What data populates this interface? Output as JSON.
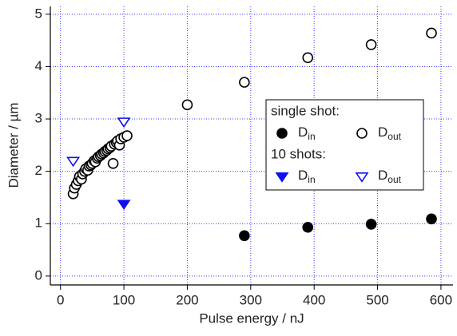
{
  "chart_data": {
    "type": "scatter",
    "x_label": "Pulse energy / nJ",
    "y_label": "Diameter / µm",
    "xlim": [
      -16,
      619
    ],
    "ylim": [
      -0.17,
      5.15
    ],
    "xticks": [
      0,
      100,
      200,
      300,
      400,
      500,
      600
    ],
    "yticks": [
      0,
      1,
      2,
      3,
      4,
      5
    ],
    "grid": true,
    "grid_color": "#3a3aff",
    "legend_position": "right",
    "legend_groups": [
      {
        "title": "single shot:",
        "series": [
          {
            "name": "D",
            "name_sub": "in",
            "marker": "circle",
            "filled": true,
            "color": "#000000",
            "x": [
              290,
              390,
              490,
              585
            ],
            "y": [
              0.77,
              0.93,
              0.99,
              1.09
            ]
          },
          {
            "name": "D",
            "name_sub": "out",
            "marker": "circle",
            "filled": false,
            "color": "#000000",
            "x": [
              20,
              22,
              25,
              28,
              30,
              33,
              35,
              38,
              40,
              43,
              45,
              48,
              50,
              53,
              55,
              58,
              60,
              63,
              65,
              68,
              70,
              73,
              75,
              78,
              80,
              83,
              85,
              88,
              90,
              93,
              95,
              100,
              105,
              200,
              290,
              390,
              490,
              585
            ],
            "y": [
              1.57,
              1.68,
              1.75,
              1.82,
              1.9,
              1.85,
              1.95,
              2.0,
              2.05,
              2.02,
              2.1,
              2.12,
              2.15,
              2.2,
              2.18,
              2.25,
              2.28,
              2.3,
              2.33,
              2.35,
              2.38,
              2.4,
              2.43,
              2.45,
              2.48,
              2.15,
              2.52,
              2.55,
              2.58,
              2.5,
              2.62,
              2.65,
              2.68,
              3.27,
              3.7,
              4.17,
              4.42,
              4.64
            ]
          }
        ]
      },
      {
        "title": "10 shots:",
        "series": [
          {
            "name": "D",
            "name_sub": "in",
            "marker": "triangle-down",
            "filled": true,
            "color": "#1010ee",
            "x": [
              100
            ],
            "y": [
              1.38
            ]
          },
          {
            "name": "D",
            "name_sub": "out",
            "marker": "triangle-down",
            "filled": false,
            "color": "#1010ee",
            "x": [
              20,
              100
            ],
            "y": [
              2.2,
              2.95
            ]
          }
        ]
      }
    ]
  }
}
